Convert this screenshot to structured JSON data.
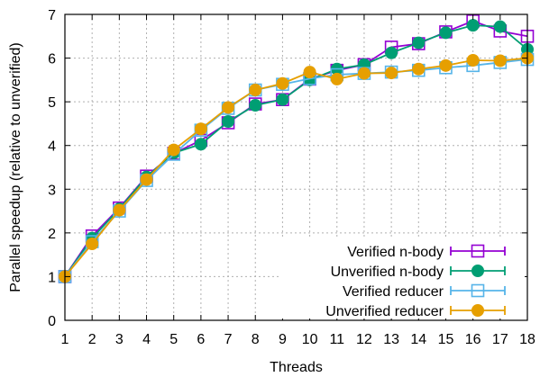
{
  "chart_data": {
    "type": "line",
    "title": "",
    "xlabel": "Threads",
    "ylabel": "Parallel speedup (relative to unverified)",
    "x": [
      1,
      2,
      3,
      4,
      5,
      6,
      7,
      8,
      9,
      10,
      11,
      12,
      13,
      14,
      15,
      16,
      17,
      18
    ],
    "xlim": [
      1,
      18
    ],
    "ylim": [
      0,
      7
    ],
    "xticks": [
      "1",
      "2",
      "3",
      "4",
      "5",
      "6",
      "7",
      "8",
      "9",
      "10",
      "11",
      "12",
      "13",
      "14",
      "15",
      "16",
      "17",
      "18"
    ],
    "yticks": [
      "0",
      "1",
      "2",
      "3",
      "4",
      "5",
      "6",
      "7"
    ],
    "grid": true,
    "legend_position": "bottom-right",
    "series": [
      {
        "name": "Verified n-body",
        "color": "#9400d3",
        "marker": "open-square",
        "values": [
          1.0,
          1.93,
          2.57,
          3.3,
          3.82,
          4.12,
          4.52,
          4.95,
          5.05,
          5.52,
          5.72,
          5.85,
          6.25,
          6.33,
          6.6,
          6.85,
          6.62,
          6.5
        ]
      },
      {
        "name": "Unverified n-body",
        "color": "#009e73",
        "marker": "filled-circle",
        "values": [
          1.0,
          1.88,
          2.55,
          3.28,
          3.83,
          4.03,
          4.55,
          4.92,
          5.05,
          5.5,
          5.75,
          5.85,
          6.12,
          6.35,
          6.58,
          6.75,
          6.72,
          6.2
        ]
      },
      {
        "name": "Verified reducer",
        "color": "#56b4e9",
        "marker": "open-square",
        "values": [
          1.0,
          1.8,
          2.5,
          3.2,
          3.8,
          4.35,
          4.85,
          5.27,
          5.4,
          5.53,
          5.62,
          5.65,
          5.68,
          5.72,
          5.78,
          5.83,
          5.9,
          5.97
        ]
      },
      {
        "name": "Unverified reducer",
        "color": "#e69f00",
        "marker": "filled-circle",
        "values": [
          1.0,
          1.75,
          2.52,
          3.22,
          3.9,
          4.38,
          4.87,
          5.27,
          5.42,
          5.68,
          5.52,
          5.65,
          5.66,
          5.75,
          5.83,
          5.95,
          5.94,
          6.0
        ]
      }
    ]
  }
}
